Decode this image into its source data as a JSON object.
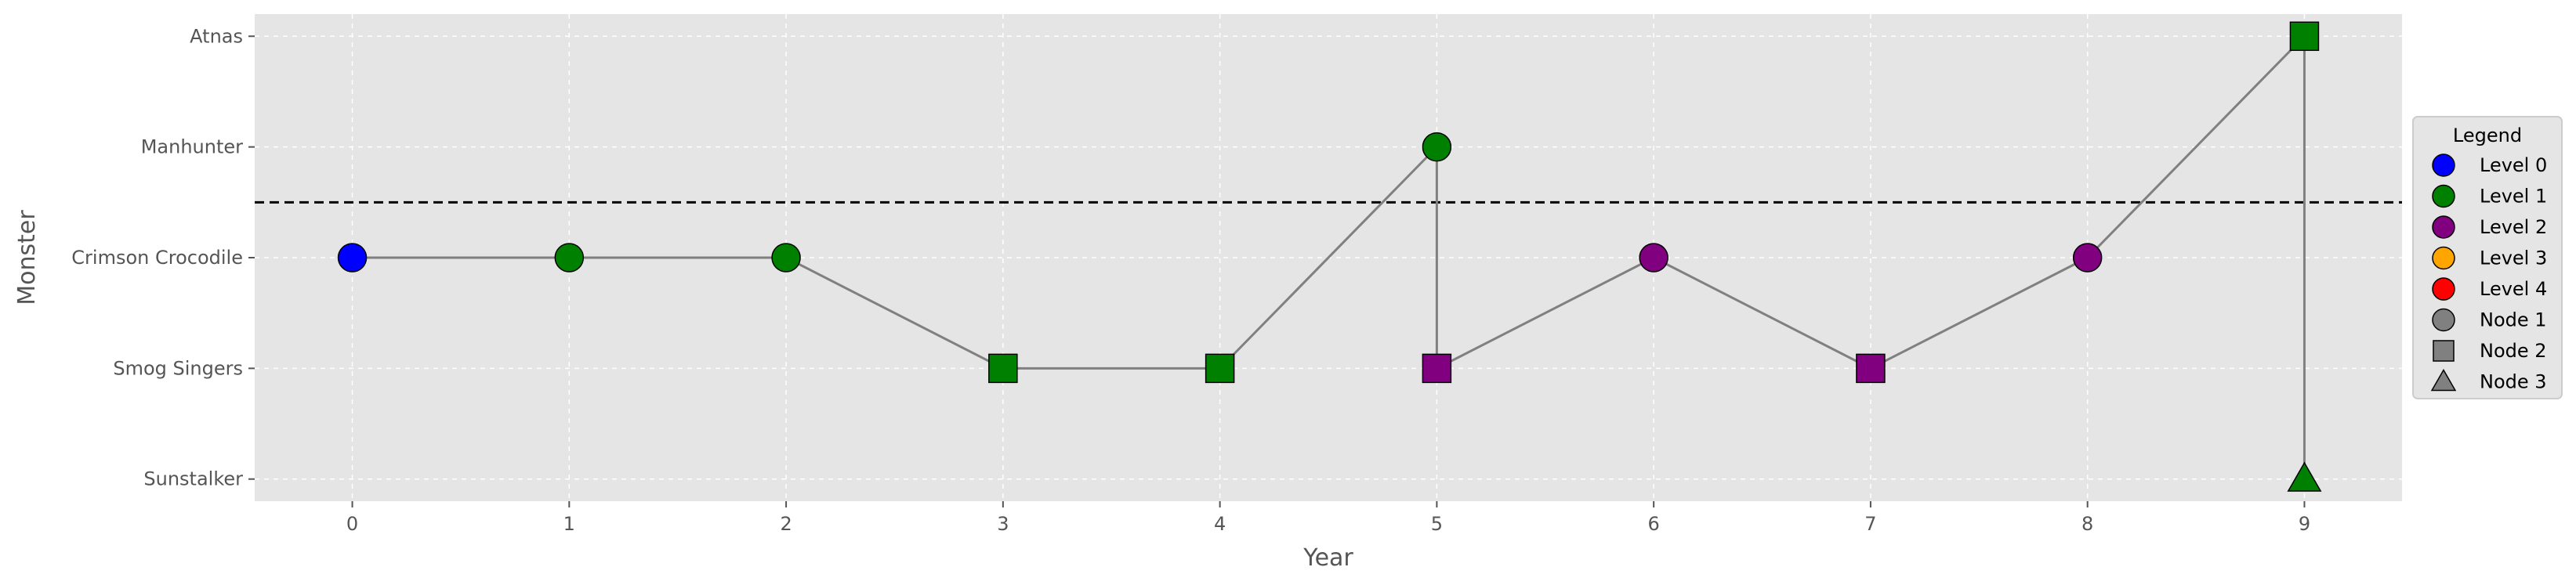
{
  "chart_data": {
    "type": "line",
    "title": "",
    "xlabel": "Year",
    "ylabel": "Monster",
    "x_ticks": [
      "0",
      "1",
      "2",
      "3",
      "4",
      "5",
      "6",
      "7",
      "8",
      "9"
    ],
    "xlim": [
      -0.45,
      9.45
    ],
    "y_categories": [
      "Sunstalker",
      "Smog Singers",
      "Crimson Crocodile",
      "Manhunter",
      "Atnas"
    ],
    "ylim": [
      -0.2,
      4.2
    ],
    "grid": true,
    "reference_line": {
      "y": 2.5,
      "style": "dashed",
      "color": "#000000"
    },
    "colors": {
      "level_0": "#0000ff",
      "level_1": "#008000",
      "level_2": "#800080",
      "level_3": "#ffa500",
      "level_4": "#ff0000",
      "node_neutral": "#808080",
      "connector": "#808080",
      "plot_background": "#e5e5e5"
    },
    "points": [
      {
        "x": 0,
        "monster": "Crimson Crocodile",
        "level": 0,
        "node": 1
      },
      {
        "x": 1,
        "monster": "Crimson Crocodile",
        "level": 1,
        "node": 1
      },
      {
        "x": 2,
        "monster": "Crimson Crocodile",
        "level": 1,
        "node": 1
      },
      {
        "x": 3,
        "monster": "Smog Singers",
        "level": 1,
        "node": 2
      },
      {
        "x": 4,
        "monster": "Smog Singers",
        "level": 1,
        "node": 2
      },
      {
        "x": 5,
        "monster": "Manhunter",
        "level": 1,
        "node": 1
      },
      {
        "x": 5,
        "monster": "Smog Singers",
        "level": 2,
        "node": 2
      },
      {
        "x": 6,
        "monster": "Crimson Crocodile",
        "level": 2,
        "node": 1
      },
      {
        "x": 7,
        "monster": "Smog Singers",
        "level": 2,
        "node": 2
      },
      {
        "x": 8,
        "monster": "Crimson Crocodile",
        "level": 2,
        "node": 1
      },
      {
        "x": 9,
        "monster": "Atnas",
        "level": 1,
        "node": 2
      },
      {
        "x": 9,
        "monster": "Sunstalker",
        "level": 1,
        "node": 3
      }
    ],
    "path": [
      [
        0,
        "Crimson Crocodile"
      ],
      [
        1,
        "Crimson Crocodile"
      ],
      [
        2,
        "Crimson Crocodile"
      ],
      [
        3,
        "Smog Singers"
      ],
      [
        4,
        "Smog Singers"
      ],
      [
        5,
        "Manhunter"
      ],
      [
        5,
        "Smog Singers"
      ],
      [
        6,
        "Crimson Crocodile"
      ],
      [
        7,
        "Smog Singers"
      ],
      [
        8,
        "Crimson Crocodile"
      ],
      [
        9,
        "Atnas"
      ],
      [
        9,
        "Sunstalker"
      ]
    ],
    "legend": {
      "title": "Legend",
      "placement": "right",
      "entries": [
        {
          "label": "Level 0",
          "marker": "circle",
          "color": "#0000ff"
        },
        {
          "label": "Level 1",
          "marker": "circle",
          "color": "#008000"
        },
        {
          "label": "Level 2",
          "marker": "circle",
          "color": "#800080"
        },
        {
          "label": "Level 3",
          "marker": "circle",
          "color": "#ffa500"
        },
        {
          "label": "Level 4",
          "marker": "circle",
          "color": "#ff0000"
        },
        {
          "label": "Node 1",
          "marker": "circle",
          "color": "#808080"
        },
        {
          "label": "Node 2",
          "marker": "square",
          "color": "#808080"
        },
        {
          "label": "Node 3",
          "marker": "triangle",
          "color": "#808080"
        }
      ]
    }
  }
}
